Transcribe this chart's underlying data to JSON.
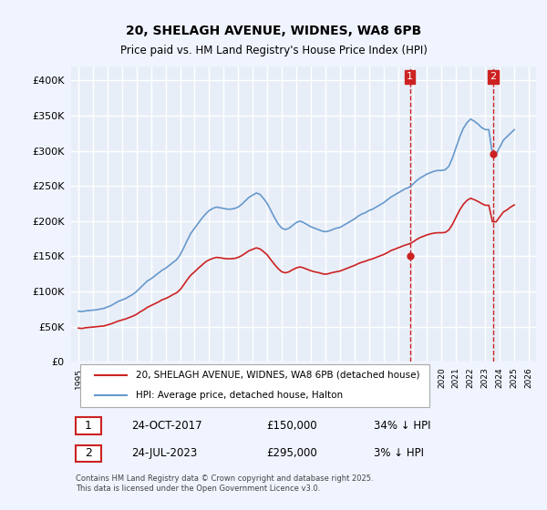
{
  "title": "20, SHELAGH AVENUE, WIDNES, WA8 6PB",
  "subtitle": "Price paid vs. HM Land Registry's House Price Index (HPI)",
  "bg_color": "#f0f4ff",
  "plot_bg_color": "#e8eef8",
  "grid_color": "#ffffff",
  "hpi_color": "#6699cc",
  "price_color": "#cc2222",
  "vline_color": "#cc2222",
  "ylim": [
    0,
    420000
  ],
  "yticks": [
    0,
    50000,
    100000,
    150000,
    200000,
    250000,
    300000,
    350000,
    400000
  ],
  "xlim": [
    1994.5,
    2026.5
  ],
  "xticks": [
    1995,
    1996,
    1997,
    1998,
    1999,
    2000,
    2001,
    2002,
    2003,
    2004,
    2005,
    2006,
    2007,
    2008,
    2009,
    2010,
    2011,
    2012,
    2013,
    2014,
    2015,
    2016,
    2017,
    2018,
    2019,
    2020,
    2021,
    2022,
    2023,
    2024,
    2025,
    2026
  ],
  "transaction1_date": 2017.82,
  "transaction1_price": 150000,
  "transaction1_label": "1",
  "transaction2_date": 2023.56,
  "transaction2_price": 295000,
  "transaction2_label": "2",
  "legend_line1": "20, SHELAGH AVENUE, WIDNES, WA8 6PB (detached house)",
  "legend_line2": "HPI: Average price, detached house, Halton",
  "table_row1": [
    "1",
    "24-OCT-2017",
    "£150,000",
    "34% ↓ HPI"
  ],
  "table_row2": [
    "2",
    "24-JUL-2023",
    "£295,000",
    "3% ↓ HPI"
  ],
  "footnote": "Contains HM Land Registry data © Crown copyright and database right 2025.\nThis data is licensed under the Open Government Licence v3.0.",
  "hpi_data_x": [
    1995.0,
    1995.25,
    1995.5,
    1995.75,
    1996.0,
    1996.25,
    1996.5,
    1996.75,
    1997.0,
    1997.25,
    1997.5,
    1997.75,
    1998.0,
    1998.25,
    1998.5,
    1998.75,
    1999.0,
    1999.25,
    1999.5,
    1999.75,
    2000.0,
    2000.25,
    2000.5,
    2000.75,
    2001.0,
    2001.25,
    2001.5,
    2001.75,
    2002.0,
    2002.25,
    2002.5,
    2002.75,
    2003.0,
    2003.25,
    2003.5,
    2003.75,
    2004.0,
    2004.25,
    2004.5,
    2004.75,
    2005.0,
    2005.25,
    2005.5,
    2005.75,
    2006.0,
    2006.25,
    2006.5,
    2006.75,
    2007.0,
    2007.25,
    2007.5,
    2007.75,
    2008.0,
    2008.25,
    2008.5,
    2008.75,
    2009.0,
    2009.25,
    2009.5,
    2009.75,
    2010.0,
    2010.25,
    2010.5,
    2010.75,
    2011.0,
    2011.25,
    2011.5,
    2011.75,
    2012.0,
    2012.25,
    2012.5,
    2012.75,
    2013.0,
    2013.25,
    2013.5,
    2013.75,
    2014.0,
    2014.25,
    2014.5,
    2014.75,
    2015.0,
    2015.25,
    2015.5,
    2015.75,
    2016.0,
    2016.25,
    2016.5,
    2016.75,
    2017.0,
    2017.25,
    2017.5,
    2017.75,
    2018.0,
    2018.25,
    2018.5,
    2018.75,
    2019.0,
    2019.25,
    2019.5,
    2019.75,
    2020.0,
    2020.25,
    2020.5,
    2020.75,
    2021.0,
    2021.25,
    2021.5,
    2021.75,
    2022.0,
    2022.25,
    2022.5,
    2022.75,
    2023.0,
    2023.25,
    2023.5,
    2023.75,
    2024.0,
    2024.25,
    2024.5,
    2024.75,
    2025.0
  ],
  "hpi_data_y": [
    72000,
    71500,
    72500,
    73000,
    73500,
    74000,
    75000,
    76000,
    78000,
    80000,
    83000,
    86000,
    88000,
    90000,
    93000,
    96000,
    100000,
    105000,
    110000,
    115000,
    118000,
    122000,
    126000,
    130000,
    133000,
    137000,
    141000,
    145000,
    152000,
    162000,
    173000,
    183000,
    190000,
    197000,
    204000,
    210000,
    215000,
    218000,
    220000,
    219000,
    218000,
    217000,
    217000,
    218000,
    220000,
    224000,
    229000,
    234000,
    237000,
    240000,
    238000,
    232000,
    225000,
    215000,
    205000,
    196000,
    190000,
    188000,
    190000,
    194000,
    198000,
    200000,
    198000,
    195000,
    192000,
    190000,
    188000,
    186000,
    185000,
    186000,
    188000,
    190000,
    191000,
    194000,
    197000,
    200000,
    203000,
    207000,
    210000,
    212000,
    215000,
    217000,
    220000,
    223000,
    226000,
    230000,
    234000,
    237000,
    240000,
    243000,
    246000,
    248000,
    252000,
    257000,
    261000,
    264000,
    267000,
    269000,
    271000,
    272000,
    272000,
    273000,
    278000,
    290000,
    305000,
    320000,
    332000,
    340000,
    345000,
    342000,
    338000,
    333000,
    330000,
    330000,
    295000,
    295000,
    305000,
    315000,
    320000,
    325000,
    330000
  ],
  "price_data_x": [
    1995.0,
    1995.25,
    1995.5,
    1995.75,
    1996.0,
    1996.25,
    1996.5,
    1996.75,
    1997.0,
    1997.25,
    1997.5,
    1997.75,
    1998.0,
    1998.25,
    1998.5,
    1998.75,
    1999.0,
    1999.25,
    1999.5,
    1999.75,
    2000.0,
    2000.25,
    2000.5,
    2000.75,
    2001.0,
    2001.25,
    2001.5,
    2001.75,
    2002.0,
    2002.25,
    2002.5,
    2002.75,
    2003.0,
    2003.25,
    2003.5,
    2003.75,
    2004.0,
    2004.25,
    2004.5,
    2004.75,
    2005.0,
    2005.25,
    2005.5,
    2005.75,
    2006.0,
    2006.25,
    2006.5,
    2006.75,
    2007.0,
    2007.25,
    2007.5,
    2007.75,
    2008.0,
    2008.25,
    2008.5,
    2008.75,
    2009.0,
    2009.25,
    2009.5,
    2009.75,
    2010.0,
    2010.25,
    2010.5,
    2010.75,
    2011.0,
    2011.25,
    2011.5,
    2011.75,
    2012.0,
    2012.25,
    2012.5,
    2012.75,
    2013.0,
    2013.25,
    2013.5,
    2013.75,
    2014.0,
    2014.25,
    2014.5,
    2014.75,
    2015.0,
    2015.25,
    2015.5,
    2015.75,
    2016.0,
    2016.25,
    2016.5,
    2016.75,
    2017.0,
    2017.25,
    2017.5,
    2017.75,
    2018.0,
    2018.25,
    2018.5,
    2018.75,
    2019.0,
    2019.25,
    2019.5,
    2019.75,
    2020.0,
    2020.25,
    2020.5,
    2020.75,
    2021.0,
    2021.25,
    2021.5,
    2021.75,
    2022.0,
    2022.25,
    2022.5,
    2022.75,
    2023.0,
    2023.25,
    2023.5,
    2023.75,
    2024.0,
    2024.25,
    2024.5,
    2024.75,
    2025.0
  ],
  "price_data_y": [
    48000,
    47500,
    48500,
    49000,
    49500,
    50000,
    50500,
    51000,
    52500,
    54000,
    56000,
    58000,
    59500,
    61000,
    63000,
    65000,
    67500,
    71000,
    74000,
    77500,
    80000,
    82500,
    85000,
    88000,
    90000,
    92500,
    95500,
    98000,
    102500,
    109500,
    117000,
    123500,
    128000,
    133000,
    137500,
    142000,
    145000,
    147000,
    148500,
    148000,
    147000,
    146500,
    146500,
    147000,
    148500,
    151000,
    154500,
    158000,
    160000,
    162000,
    160500,
    156500,
    152000,
    145000,
    138500,
    132500,
    128000,
    126500,
    128000,
    131000,
    133500,
    135000,
    133500,
    131500,
    129500,
    128000,
    127000,
    125500,
    124500,
    125500,
    127000,
    128000,
    129000,
    131000,
    133000,
    135000,
    137000,
    139500,
    141500,
    143000,
    145000,
    146500,
    148500,
    150500,
    152500,
    155000,
    158000,
    160000,
    162000,
    164000,
    166000,
    167500,
    170000,
    173500,
    176500,
    178500,
    180500,
    182000,
    183000,
    183500,
    183500,
    184000,
    187500,
    195500,
    206000,
    216000,
    224000,
    229500,
    232500,
    230500,
    228000,
    225000,
    222500,
    222500,
    199000,
    199000,
    206000,
    213000,
    216000,
    220000,
    223000
  ]
}
